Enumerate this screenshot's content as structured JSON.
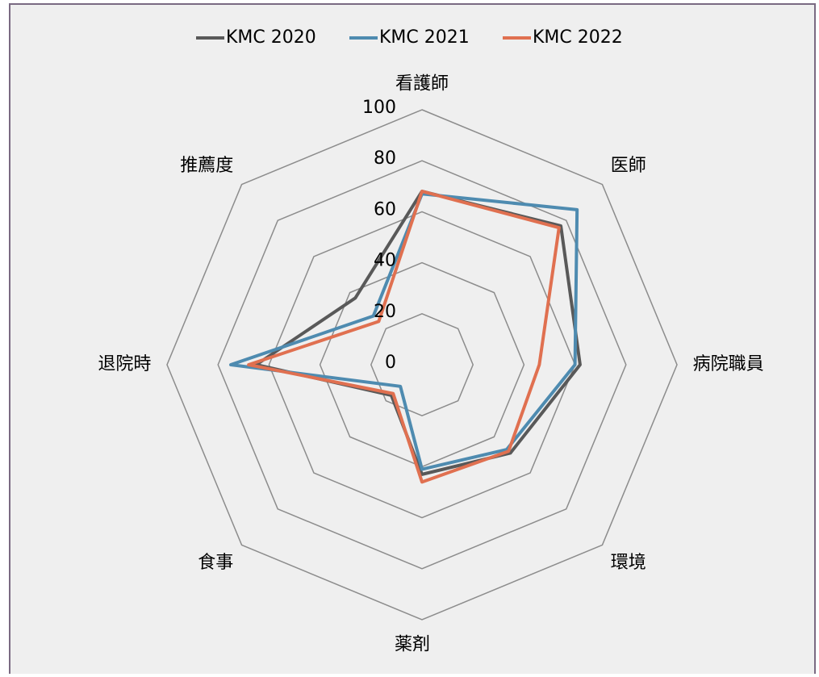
{
  "chart_data": {
    "type": "radar",
    "categories": [
      "看護師",
      "医師",
      "病院職員",
      "環境",
      "薬剤",
      "食事",
      "退院時",
      "推薦度"
    ],
    "series": [
      {
        "name": "KMC 2020",
        "color": "#595959",
        "values": [
          68,
          77,
          62,
          49,
          43,
          17,
          65,
          37
        ]
      },
      {
        "name": "KMC 2021",
        "color": "#4e8bb0",
        "values": [
          67,
          86,
          60,
          47,
          41,
          12,
          75,
          27
        ]
      },
      {
        "name": "KMC 2022",
        "color": "#e07050",
        "values": [
          68,
          76,
          46,
          48,
          46,
          16,
          68,
          24
        ]
      }
    ],
    "ylim": [
      0,
      100
    ],
    "yticks": [
      0,
      20,
      40,
      60,
      80,
      100
    ],
    "grid": true,
    "legend": "top"
  }
}
